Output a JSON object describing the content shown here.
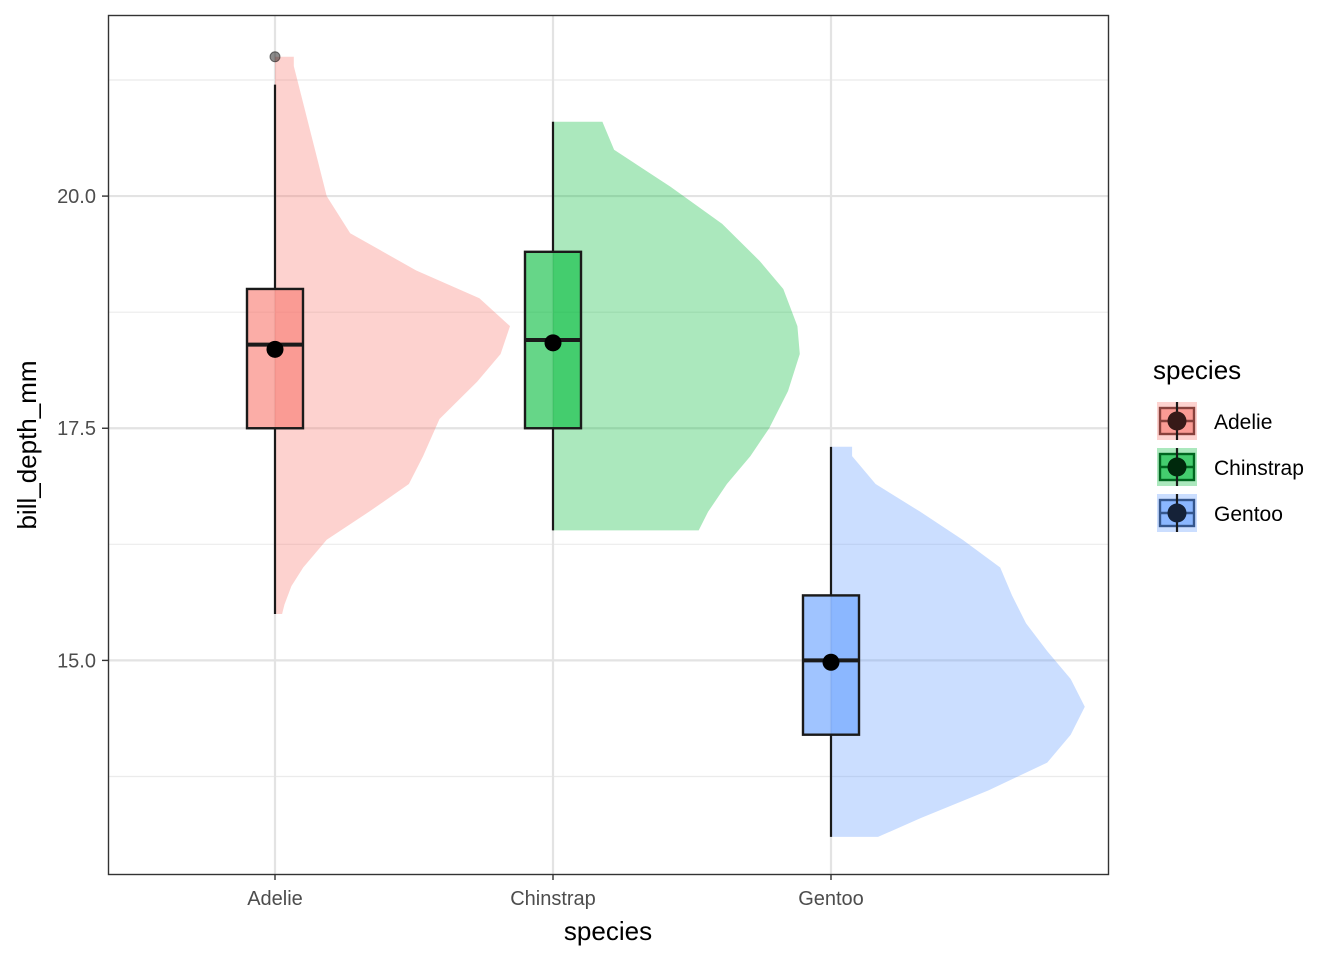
{
  "chart_data": {
    "type": "raincloud",
    "title": "",
    "xlabel": "species",
    "ylabel": "bill_depth_mm",
    "ylim": [
      12.7,
      21.95
    ],
    "y_ticks": [
      15.0,
      17.5,
      20.0
    ],
    "y_tick_labels": [
      "15.0",
      "17.5",
      "20.0"
    ],
    "categories": [
      "Adelie",
      "Chinstrap",
      "Gentoo"
    ],
    "grid": true,
    "legend": {
      "title": "species",
      "placement": "right"
    },
    "series": [
      {
        "name": "Adelie",
        "color": "#F8766D",
        "box": {
          "lower_whisker": 15.5,
          "q1": 17.5,
          "median": 18.4,
          "q3": 19.0,
          "upper_whisker": 21.2
        },
        "mean": 18.35,
        "outliers": [
          21.5
        ],
        "density": [
          [
            15.5,
            0.03
          ],
          [
            15.6,
            0.04
          ],
          [
            15.8,
            0.07
          ],
          [
            16.0,
            0.12
          ],
          [
            16.3,
            0.22
          ],
          [
            16.6,
            0.4
          ],
          [
            16.9,
            0.57
          ],
          [
            17.2,
            0.63
          ],
          [
            17.6,
            0.7
          ],
          [
            18.0,
            0.86
          ],
          [
            18.3,
            0.96
          ],
          [
            18.6,
            1.0
          ],
          [
            18.9,
            0.87
          ],
          [
            19.2,
            0.6
          ],
          [
            19.6,
            0.32
          ],
          [
            20.0,
            0.22
          ],
          [
            20.4,
            0.18
          ],
          [
            20.8,
            0.14
          ],
          [
            21.2,
            0.1
          ],
          [
            21.4,
            0.08
          ],
          [
            21.5,
            0.08
          ]
        ]
      },
      {
        "name": "Chinstrap",
        "color": "#00BA38",
        "box": {
          "lower_whisker": 16.4,
          "q1": 17.5,
          "median": 18.45,
          "q3": 19.4,
          "upper_whisker": 20.8
        },
        "mean": 18.42,
        "outliers": [],
        "density": [
          [
            16.4,
            0.62
          ],
          [
            16.6,
            0.66
          ],
          [
            16.9,
            0.74
          ],
          [
            17.2,
            0.84
          ],
          [
            17.5,
            0.92
          ],
          [
            17.9,
            1.0
          ],
          [
            18.3,
            1.05
          ],
          [
            18.6,
            1.04
          ],
          [
            19.0,
            0.98
          ],
          [
            19.3,
            0.88
          ],
          [
            19.7,
            0.72
          ],
          [
            20.1,
            0.5
          ],
          [
            20.5,
            0.26
          ],
          [
            20.8,
            0.21
          ]
        ]
      },
      {
        "name": "Gentoo",
        "color": "#619CFF",
        "box": {
          "lower_whisker": 13.1,
          "q1": 14.2,
          "median": 15.0,
          "q3": 15.7,
          "upper_whisker": 17.3
        },
        "mean": 14.98,
        "outliers": [],
        "density": [
          [
            13.1,
            0.2
          ],
          [
            13.3,
            0.38
          ],
          [
            13.6,
            0.67
          ],
          [
            13.9,
            0.92
          ],
          [
            14.2,
            1.02
          ],
          [
            14.5,
            1.08
          ],
          [
            14.8,
            1.02
          ],
          [
            15.1,
            0.92
          ],
          [
            15.4,
            0.83
          ],
          [
            15.7,
            0.77
          ],
          [
            16.0,
            0.72
          ],
          [
            16.3,
            0.56
          ],
          [
            16.6,
            0.38
          ],
          [
            16.9,
            0.19
          ],
          [
            17.2,
            0.09
          ],
          [
            17.3,
            0.09
          ]
        ]
      }
    ]
  }
}
